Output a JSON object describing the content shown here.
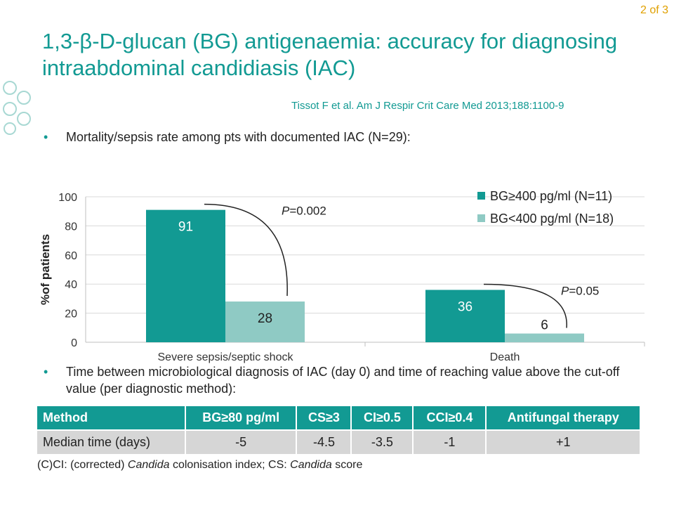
{
  "page_number": "2 of 3",
  "title": "1,3-β-D-glucan (BG) antigenaemia: accuracy for diagnosing intraabdominal candidiasis (IAC)",
  "citation": "Tissot F et al. Am J Respir Crit Care Med 2013;188:1100-9",
  "bullets": {
    "first": "Mortality/sepsis rate among pts with documented IAC (N=29):",
    "second": "Time between microbiological diagnosis of IAC (day 0) and time of reaching value above the cut-off value (per diagnostic method):"
  },
  "colors": {
    "accent": "#129a93",
    "series_dark": "#129a93",
    "series_light": "#8fcac4",
    "table_row": "#d6d6d6"
  },
  "chart_data": {
    "type": "bar",
    "categories": [
      "Severe sepsis/septic shock",
      "Death"
    ],
    "series": [
      {
        "name": "BG≥400 pg/ml (N=11)",
        "values": [
          91,
          36
        ]
      },
      {
        "name": "BG<400 pg/ml (N=18)",
        "values": [
          28,
          6
        ]
      }
    ],
    "ylabel": "%of patients",
    "ylim": [
      0,
      100
    ],
    "yticks": [
      0,
      20,
      40,
      60,
      80,
      100
    ],
    "legend": "top-right",
    "annotations": [
      {
        "category": "Severe sepsis/septic shock",
        "prefix": "P",
        "text": "=0.002"
      },
      {
        "category": "Death",
        "prefix": "P",
        "text": "=0.05"
      }
    ]
  },
  "table": {
    "headers": [
      "Method",
      "BG≥80 pg/ml",
      "CS≥3",
      "CI≥0.5",
      "CCI≥0.4",
      "Antifungal therapy"
    ],
    "row": [
      "Median time (days)",
      "-5",
      "-4.5",
      "-3.5",
      "-1",
      "+1"
    ]
  },
  "footnote": {
    "part1": "(C)CI: (corrected) ",
    "italic1": "Candida",
    "part2": " colonisation index; CS: ",
    "italic2": "Candida",
    "part3": " score"
  }
}
